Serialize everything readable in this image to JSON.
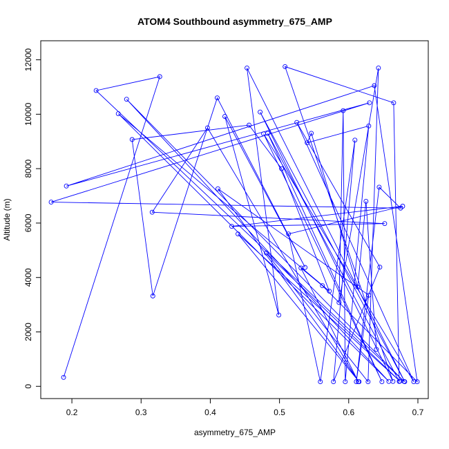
{
  "chart_data": {
    "type": "line",
    "title": "ATOM4 Southbound asymmetry_675_AMP",
    "xlabel": "asymmetry_675_AMP",
    "ylabel": "Altitude (m)",
    "xlim": [
      0.155,
      0.715
    ],
    "ylim": [
      -450,
      12700
    ],
    "x_ticks": [
      0.2,
      0.3,
      0.4,
      0.5,
      0.6,
      0.7
    ],
    "x_tick_labels": [
      "0.2",
      "0.3",
      "0.4",
      "0.5",
      "0.6",
      "0.7"
    ],
    "y_ticks": [
      0,
      2000,
      4000,
      6000,
      8000,
      10000,
      12000
    ],
    "y_tick_labels": [
      "0",
      "2000",
      "4000",
      "6000",
      "8000",
      "10000",
      "12000"
    ],
    "grid": false,
    "series": [
      {
        "color": "#0000ff",
        "marker": "open-circle",
        "points": [
          [
            0.188,
            330
          ],
          [
            0.327,
            11380
          ],
          [
            0.235,
            10870
          ],
          [
            0.68,
            180
          ],
          [
            0.279,
            10550
          ],
          [
            0.658,
            180
          ],
          [
            0.267,
            10020
          ],
          [
            0.572,
            3500
          ],
          [
            0.503,
            8000
          ],
          [
            0.456,
            9600
          ],
          [
            0.287,
            9070
          ],
          [
            0.317,
            3320
          ],
          [
            0.41,
            10600
          ],
          [
            0.537,
            4370
          ],
          [
            0.421,
            9920
          ],
          [
            0.499,
            2620
          ],
          [
            0.453,
            11700
          ],
          [
            0.681,
            170
          ],
          [
            0.472,
            10080
          ],
          [
            0.664,
            180
          ],
          [
            0.508,
            11750
          ],
          [
            0.665,
            10420
          ],
          [
            0.673,
            180
          ],
          [
            0.483,
            9300
          ],
          [
            0.648,
            170
          ],
          [
            0.477,
            9280
          ],
          [
            0.694,
            170
          ],
          [
            0.525,
            9700
          ],
          [
            0.645,
            4380
          ],
          [
            0.578,
            170
          ],
          [
            0.609,
            9050
          ],
          [
            0.559,
            170
          ],
          [
            0.513,
            5600
          ],
          [
            0.678,
            6620
          ],
          [
            0.431,
            5880
          ],
          [
            0.652,
            5980
          ],
          [
            0.316,
            6400
          ],
          [
            0.396,
            9500
          ],
          [
            0.614,
            170
          ],
          [
            0.531,
            4350
          ],
          [
            0.562,
            3700
          ],
          [
            0.699,
            170
          ],
          [
            0.637,
            11050
          ],
          [
            0.192,
            7360
          ],
          [
            0.63,
            10420
          ],
          [
            0.17,
            6770
          ],
          [
            0.675,
            6550
          ],
          [
            0.644,
            7320
          ],
          [
            0.611,
            170
          ],
          [
            0.629,
            3350
          ],
          [
            0.411,
            7260
          ],
          [
            0.615,
            170
          ],
          [
            0.44,
            5600
          ],
          [
            0.674,
            190
          ],
          [
            0.481,
            4900
          ],
          [
            0.628,
            170
          ],
          [
            0.643,
            11700
          ],
          [
            0.586,
            3080
          ],
          [
            0.592,
            10130
          ],
          [
            0.595,
            170
          ],
          [
            0.629,
            9570
          ],
          [
            0.54,
            8950
          ],
          [
            0.546,
            9300
          ],
          [
            0.613,
            3650
          ],
          [
            0.625,
            6800
          ],
          [
            0.64,
            1360
          ]
        ]
      }
    ]
  }
}
